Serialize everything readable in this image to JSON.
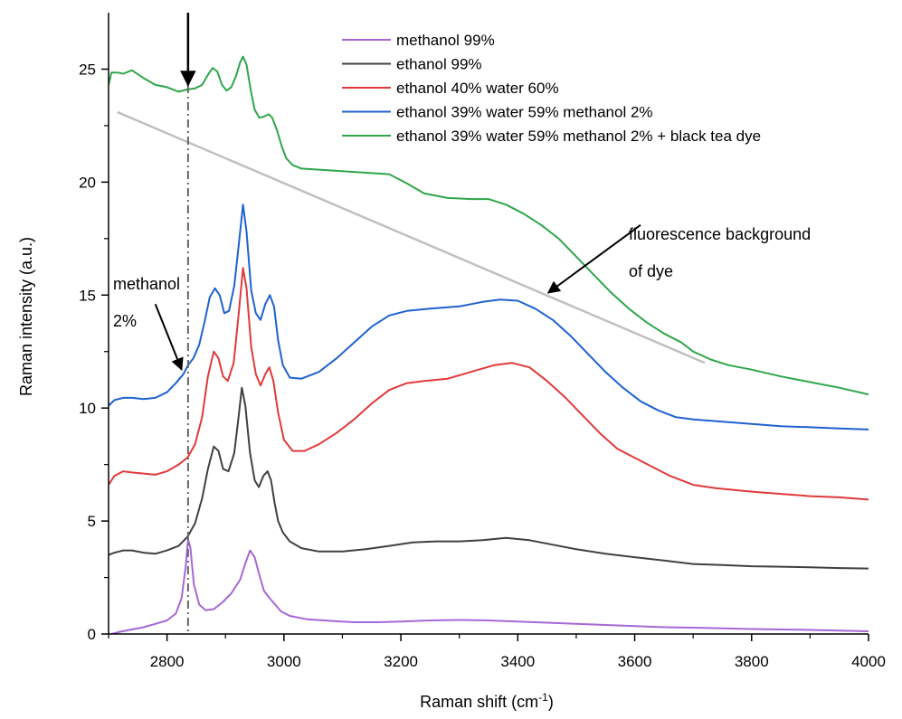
{
  "chart_data": {
    "type": "line",
    "xlabel": "Raman shift (cm",
    "xlabel_sup": "-1",
    "xlabel_tail": ")",
    "ylabel": "Raman intensity (a.u.)",
    "xlim": [
      2700,
      4000
    ],
    "ylim": [
      0,
      27.5
    ],
    "xticks": [
      2800,
      3000,
      3200,
      3400,
      3600,
      3800,
      4000
    ],
    "yticks": [
      0,
      5,
      10,
      15,
      20,
      25
    ],
    "grid": false,
    "legend_position": "top-right",
    "series": [
      {
        "name": "methanol 99%",
        "color": "#a667d6",
        "points": [
          [
            2705,
            0.0
          ],
          [
            2720,
            0.1
          ],
          [
            2740,
            0.2
          ],
          [
            2760,
            0.3
          ],
          [
            2780,
            0.45
          ],
          [
            2800,
            0.6
          ],
          [
            2815,
            0.9
          ],
          [
            2825,
            1.6
          ],
          [
            2832,
            3.0
          ],
          [
            2836,
            4.2
          ],
          [
            2840,
            3.8
          ],
          [
            2846,
            2.2
          ],
          [
            2855,
            1.3
          ],
          [
            2866,
            1.05
          ],
          [
            2880,
            1.1
          ],
          [
            2895,
            1.4
          ],
          [
            2910,
            1.8
          ],
          [
            2925,
            2.4
          ],
          [
            2935,
            3.2
          ],
          [
            2942,
            3.7
          ],
          [
            2950,
            3.4
          ],
          [
            2958,
            2.6
          ],
          [
            2966,
            1.9
          ],
          [
            2975,
            1.6
          ],
          [
            2985,
            1.3
          ],
          [
            2995,
            1.0
          ],
          [
            3010,
            0.8
          ],
          [
            3040,
            0.65
          ],
          [
            3080,
            0.58
          ],
          [
            3120,
            0.52
          ],
          [
            3160,
            0.52
          ],
          [
            3200,
            0.55
          ],
          [
            3250,
            0.6
          ],
          [
            3300,
            0.62
          ],
          [
            3350,
            0.6
          ],
          [
            3400,
            0.55
          ],
          [
            3450,
            0.5
          ],
          [
            3500,
            0.45
          ],
          [
            3550,
            0.4
          ],
          [
            3600,
            0.35
          ],
          [
            3650,
            0.3
          ],
          [
            3700,
            0.28
          ],
          [
            3750,
            0.25
          ],
          [
            3800,
            0.22
          ],
          [
            3850,
            0.2
          ],
          [
            3900,
            0.18
          ],
          [
            3950,
            0.15
          ],
          [
            4000,
            0.12
          ]
        ]
      },
      {
        "name": "ethanol 99%",
        "color": "#404040",
        "points": [
          [
            2700,
            3.5
          ],
          [
            2710,
            3.6
          ],
          [
            2725,
            3.7
          ],
          [
            2740,
            3.7
          ],
          [
            2760,
            3.6
          ],
          [
            2780,
            3.55
          ],
          [
            2800,
            3.7
          ],
          [
            2820,
            3.9
          ],
          [
            2835,
            4.3
          ],
          [
            2848,
            4.9
          ],
          [
            2860,
            6.0
          ],
          [
            2870,
            7.3
          ],
          [
            2880,
            8.3
          ],
          [
            2888,
            8.1
          ],
          [
            2896,
            7.3
          ],
          [
            2905,
            7.2
          ],
          [
            2915,
            8.0
          ],
          [
            2922,
            9.5
          ],
          [
            2928,
            10.9
          ],
          [
            2934,
            10.1
          ],
          [
            2942,
            8.0
          ],
          [
            2950,
            6.8
          ],
          [
            2957,
            6.5
          ],
          [
            2965,
            7.0
          ],
          [
            2972,
            7.2
          ],
          [
            2978,
            6.8
          ],
          [
            2984,
            5.8
          ],
          [
            2990,
            5.0
          ],
          [
            2998,
            4.5
          ],
          [
            3010,
            4.1
          ],
          [
            3030,
            3.8
          ],
          [
            3060,
            3.65
          ],
          [
            3100,
            3.65
          ],
          [
            3140,
            3.75
          ],
          [
            3180,
            3.9
          ],
          [
            3220,
            4.05
          ],
          [
            3260,
            4.1
          ],
          [
            3300,
            4.1
          ],
          [
            3340,
            4.15
          ],
          [
            3380,
            4.25
          ],
          [
            3420,
            4.15
          ],
          [
            3460,
            3.95
          ],
          [
            3500,
            3.75
          ],
          [
            3550,
            3.55
          ],
          [
            3600,
            3.4
          ],
          [
            3650,
            3.25
          ],
          [
            3700,
            3.1
          ],
          [
            3750,
            3.05
          ],
          [
            3800,
            3.0
          ],
          [
            3850,
            2.98
          ],
          [
            3900,
            2.95
          ],
          [
            3950,
            2.92
          ],
          [
            4000,
            2.9
          ]
        ]
      },
      {
        "name": "ethanol 40% water 60%",
        "color": "#e03a3a",
        "points": [
          [
            2700,
            6.6
          ],
          [
            2710,
            7.0
          ],
          [
            2725,
            7.2
          ],
          [
            2740,
            7.15
          ],
          [
            2760,
            7.1
          ],
          [
            2780,
            7.05
          ],
          [
            2800,
            7.2
          ],
          [
            2820,
            7.5
          ],
          [
            2835,
            7.8
          ],
          [
            2848,
            8.4
          ],
          [
            2860,
            9.6
          ],
          [
            2870,
            11.4
          ],
          [
            2880,
            12.5
          ],
          [
            2888,
            12.2
          ],
          [
            2896,
            11.4
          ],
          [
            2904,
            11.2
          ],
          [
            2914,
            12.0
          ],
          [
            2922,
            14.0
          ],
          [
            2930,
            16.2
          ],
          [
            2936,
            15.3
          ],
          [
            2944,
            12.7
          ],
          [
            2952,
            11.5
          ],
          [
            2960,
            11.0
          ],
          [
            2968,
            11.5
          ],
          [
            2975,
            11.8
          ],
          [
            2982,
            11.2
          ],
          [
            2990,
            9.8
          ],
          [
            3000,
            8.6
          ],
          [
            3015,
            8.1
          ],
          [
            3035,
            8.1
          ],
          [
            3060,
            8.4
          ],
          [
            3090,
            8.9
          ],
          [
            3120,
            9.5
          ],
          [
            3150,
            10.2
          ],
          [
            3180,
            10.8
          ],
          [
            3210,
            11.1
          ],
          [
            3240,
            11.2
          ],
          [
            3280,
            11.3
          ],
          [
            3320,
            11.6
          ],
          [
            3360,
            11.9
          ],
          [
            3390,
            12.0
          ],
          [
            3420,
            11.8
          ],
          [
            3450,
            11.2
          ],
          [
            3480,
            10.5
          ],
          [
            3510,
            9.7
          ],
          [
            3540,
            8.9
          ],
          [
            3570,
            8.2
          ],
          [
            3600,
            7.8
          ],
          [
            3630,
            7.4
          ],
          [
            3660,
            7.0
          ],
          [
            3700,
            6.6
          ],
          [
            3740,
            6.45
          ],
          [
            3800,
            6.3
          ],
          [
            3850,
            6.2
          ],
          [
            3900,
            6.1
          ],
          [
            3950,
            6.05
          ],
          [
            4000,
            5.95
          ]
        ]
      },
      {
        "name": "ethanol 39% water 59% methanol 2%",
        "color": "#1e62d0",
        "points": [
          [
            2700,
            10.1
          ],
          [
            2710,
            10.35
          ],
          [
            2725,
            10.45
          ],
          [
            2740,
            10.45
          ],
          [
            2760,
            10.4
          ],
          [
            2780,
            10.45
          ],
          [
            2800,
            10.7
          ],
          [
            2815,
            11.1
          ],
          [
            2828,
            11.5
          ],
          [
            2836,
            11.9
          ],
          [
            2845,
            12.2
          ],
          [
            2855,
            12.8
          ],
          [
            2865,
            13.9
          ],
          [
            2873,
            14.9
          ],
          [
            2882,
            15.3
          ],
          [
            2890,
            15.0
          ],
          [
            2898,
            14.2
          ],
          [
            2906,
            14.3
          ],
          [
            2915,
            15.4
          ],
          [
            2923,
            17.3
          ],
          [
            2930,
            19.0
          ],
          [
            2936,
            17.8
          ],
          [
            2944,
            15.2
          ],
          [
            2952,
            14.2
          ],
          [
            2960,
            13.9
          ],
          [
            2968,
            14.6
          ],
          [
            2976,
            15.0
          ],
          [
            2983,
            14.5
          ],
          [
            2990,
            13.0
          ],
          [
            2998,
            11.9
          ],
          [
            3010,
            11.35
          ],
          [
            3030,
            11.3
          ],
          [
            3060,
            11.6
          ],
          [
            3090,
            12.2
          ],
          [
            3120,
            12.9
          ],
          [
            3150,
            13.6
          ],
          [
            3180,
            14.1
          ],
          [
            3210,
            14.3
          ],
          [
            3250,
            14.4
          ],
          [
            3300,
            14.5
          ],
          [
            3340,
            14.7
          ],
          [
            3370,
            14.8
          ],
          [
            3400,
            14.75
          ],
          [
            3430,
            14.4
          ],
          [
            3460,
            13.9
          ],
          [
            3490,
            13.2
          ],
          [
            3520,
            12.4
          ],
          [
            3550,
            11.6
          ],
          [
            3580,
            10.9
          ],
          [
            3610,
            10.3
          ],
          [
            3640,
            9.9
          ],
          [
            3670,
            9.6
          ],
          [
            3700,
            9.5
          ],
          [
            3750,
            9.4
          ],
          [
            3800,
            9.3
          ],
          [
            3850,
            9.2
          ],
          [
            3900,
            9.15
          ],
          [
            3950,
            9.1
          ],
          [
            4000,
            9.05
          ]
        ]
      },
      {
        "name": "ethanol 39% water 59% methanol 2% + black tea dye",
        "color": "#2fa64a",
        "points": [
          [
            2700,
            24.3
          ],
          [
            2705,
            24.85
          ],
          [
            2715,
            24.85
          ],
          [
            2725,
            24.8
          ],
          [
            2740,
            24.95
          ],
          [
            2760,
            24.6
          ],
          [
            2780,
            24.3
          ],
          [
            2800,
            24.2
          ],
          [
            2820,
            24.0
          ],
          [
            2835,
            24.1
          ],
          [
            2848,
            24.15
          ],
          [
            2860,
            24.3
          ],
          [
            2870,
            24.75
          ],
          [
            2878,
            25.05
          ],
          [
            2886,
            24.9
          ],
          [
            2894,
            24.3
          ],
          [
            2902,
            24.05
          ],
          [
            2910,
            24.2
          ],
          [
            2918,
            24.7
          ],
          [
            2925,
            25.3
          ],
          [
            2930,
            25.55
          ],
          [
            2936,
            25.2
          ],
          [
            2943,
            24.1
          ],
          [
            2950,
            23.2
          ],
          [
            2958,
            22.85
          ],
          [
            2966,
            22.9
          ],
          [
            2974,
            23.0
          ],
          [
            2980,
            22.85
          ],
          [
            2988,
            22.3
          ],
          [
            2996,
            21.6
          ],
          [
            3004,
            21.05
          ],
          [
            3015,
            20.75
          ],
          [
            3030,
            20.6
          ],
          [
            3060,
            20.55
          ],
          [
            3090,
            20.5
          ],
          [
            3120,
            20.45
          ],
          [
            3150,
            20.4
          ],
          [
            3180,
            20.35
          ],
          [
            3210,
            19.95
          ],
          [
            3240,
            19.5
          ],
          [
            3280,
            19.3
          ],
          [
            3320,
            19.25
          ],
          [
            3350,
            19.25
          ],
          [
            3380,
            19.0
          ],
          [
            3410,
            18.6
          ],
          [
            3440,
            18.1
          ],
          [
            3470,
            17.5
          ],
          [
            3500,
            16.7
          ],
          [
            3530,
            15.9
          ],
          [
            3560,
            15.1
          ],
          [
            3590,
            14.4
          ],
          [
            3620,
            13.8
          ],
          [
            3650,
            13.3
          ],
          [
            3680,
            12.9
          ],
          [
            3700,
            12.5
          ],
          [
            3730,
            12.15
          ],
          [
            3760,
            11.9
          ],
          [
            3800,
            11.7
          ],
          [
            3850,
            11.4
          ],
          [
            3900,
            11.15
          ],
          [
            3950,
            10.9
          ],
          [
            4000,
            10.6
          ]
        ]
      }
    ],
    "annotations": {
      "fluorescence_text_line1": "fluorescence background",
      "fluorescence_text_line2": "of dye",
      "methanol_text_line1": "methanol",
      "methanol_text_line2": "2%",
      "dashed_line_x": 2836,
      "background_line": {
        "color": "#c0c0c0",
        "from": [
          2715,
          23.1
        ],
        "to": [
          3720,
          12.0
        ]
      },
      "fluorescence_arrow": {
        "from": [
          3610,
          18.1
        ],
        "to": [
          3452,
          15.1
        ]
      },
      "methanol_arrow": {
        "from": [
          2780,
          14.6
        ],
        "to": [
          2825,
          11.7
        ]
      },
      "top_arrow": {
        "from": [
          2836,
          27.5
        ],
        "to": [
          2836,
          24.3
        ]
      }
    }
  }
}
